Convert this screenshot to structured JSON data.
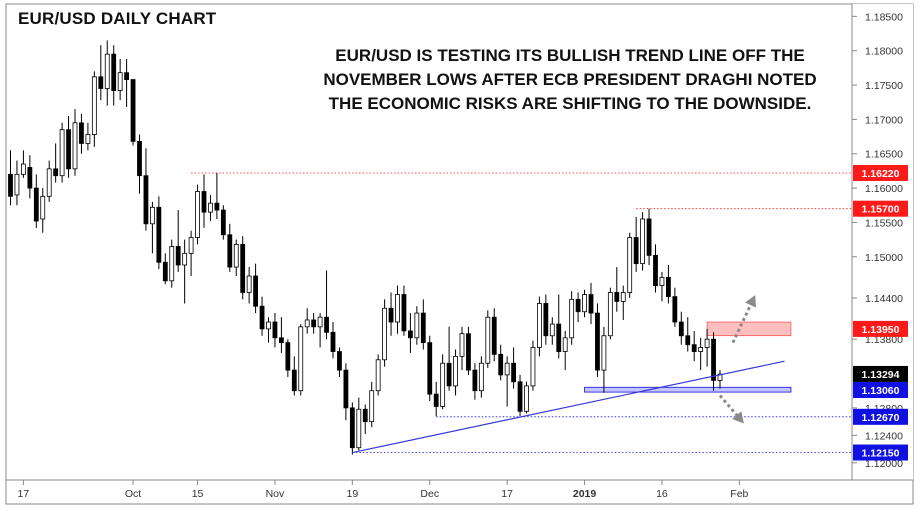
{
  "chart_data": {
    "type": "candlestick",
    "title": "EUR/USD DAILY CHART",
    "annotation": [
      "EUR/USD IS TESTING ITS BULLISH TREND LINE OFF THE",
      "NOVEMBER LOWS AFTER ECB PRESIDENT DRAGHI NOTED",
      "THE ECONOMIC RISKS ARE SHIFTING TO THE DOWNSIDE."
    ],
    "ylim": [
      1.1175,
      1.1868
    ],
    "y_ticks": [
      "1.18500",
      "1.18000",
      "1.17500",
      "1.17000",
      "1.16500",
      "1.16000",
      "1.15500",
      "1.15000",
      "1.14400",
      "1.13800",
      "1.12800",
      "1.12400",
      "1.12000"
    ],
    "x_ticks": [
      "17",
      "Oct",
      "15",
      "Nov",
      "19",
      "Dec",
      "17",
      "2019",
      "16",
      "Feb"
    ],
    "x_tick_bold": [
      false,
      false,
      false,
      false,
      false,
      false,
      false,
      true,
      false,
      false
    ],
    "x_tick_bar_index": [
      2,
      19,
      29,
      41,
      53,
      65,
      77,
      89,
      101,
      113
    ],
    "colors": {
      "up": "#ffffff",
      "down": "#000000",
      "wick": "#000000",
      "red": "#ff1a1a",
      "blue": "#1010e0",
      "trend": "#3838d8"
    },
    "price_labels": [
      {
        "value": 1.1622,
        "text": "1.16220",
        "color": "red"
      },
      {
        "value": 1.157,
        "text": "1.15700",
        "color": "red"
      },
      {
        "value": 1.1395,
        "text": "1.13950",
        "color": "red"
      },
      {
        "value": 1.13294,
        "text": "1.13294",
        "color": "black"
      },
      {
        "value": 1.1306,
        "text": "1.13060",
        "color": "blue"
      },
      {
        "value": 1.1267,
        "text": "1.12670",
        "color": "blue"
      },
      {
        "value": 1.1215,
        "text": "1.12150",
        "color": "blue"
      }
    ],
    "candles": [
      [
        1.162,
        1.1655,
        1.1575,
        1.1588
      ],
      [
        1.159,
        1.164,
        1.1575,
        1.162
      ],
      [
        1.162,
        1.1655,
        1.1615,
        1.1635
      ],
      [
        1.163,
        1.1648,
        1.1585,
        1.16
      ],
      [
        1.16,
        1.162,
        1.1542,
        1.1552
      ],
      [
        1.1555,
        1.16,
        1.1535,
        1.1588
      ],
      [
        1.1588,
        1.164,
        1.158,
        1.1628
      ],
      [
        1.1628,
        1.1665,
        1.1608,
        1.1618
      ],
      [
        1.1618,
        1.1695,
        1.1608,
        1.1685
      ],
      [
        1.1685,
        1.1705,
        1.1615,
        1.1628
      ],
      [
        1.1628,
        1.1715,
        1.1618,
        1.1695
      ],
      [
        1.1695,
        1.1708,
        1.165,
        1.1665
      ],
      [
        1.1665,
        1.1695,
        1.1655,
        1.1678
      ],
      [
        1.1678,
        1.177,
        1.166,
        1.1762
      ],
      [
        1.1762,
        1.1808,
        1.1728,
        1.1745
      ],
      [
        1.1745,
        1.1815,
        1.172,
        1.1795
      ],
      [
        1.1795,
        1.1808,
        1.172,
        1.1742
      ],
      [
        1.1742,
        1.1788,
        1.1728,
        1.1768
      ],
      [
        1.1768,
        1.1788,
        1.1718,
        1.1758
      ],
      [
        1.1758,
        1.1758,
        1.1662,
        1.1668
      ],
      [
        1.1668,
        1.1678,
        1.1592,
        1.1618
      ],
      [
        1.1618,
        1.1658,
        1.1538,
        1.1548
      ],
      [
        1.1548,
        1.158,
        1.1505,
        1.1572
      ],
      [
        1.1572,
        1.1588,
        1.1482,
        1.1492
      ],
      [
        1.1492,
        1.1505,
        1.146,
        1.1465
      ],
      [
        1.1465,
        1.1525,
        1.1455,
        1.1515
      ],
      [
        1.1515,
        1.1568,
        1.1478,
        1.1488
      ],
      [
        1.1488,
        1.1525,
        1.1432,
        1.1505
      ],
      [
        1.1505,
        1.1538,
        1.1472,
        1.1528
      ],
      [
        1.1528,
        1.1605,
        1.1518,
        1.1595
      ],
      [
        1.1595,
        1.162,
        1.1542,
        1.1565
      ],
      [
        1.1565,
        1.159,
        1.1552,
        1.1578
      ],
      [
        1.1578,
        1.1622,
        1.1555,
        1.1568
      ],
      [
        1.1568,
        1.1575,
        1.1525,
        1.1532
      ],
      [
        1.1532,
        1.1548,
        1.1478,
        1.1485
      ],
      [
        1.1485,
        1.1525,
        1.1472,
        1.1518
      ],
      [
        1.1518,
        1.153,
        1.1438,
        1.1448
      ],
      [
        1.1448,
        1.1485,
        1.1432,
        1.1472
      ],
      [
        1.1472,
        1.149,
        1.1418,
        1.1428
      ],
      [
        1.1428,
        1.1442,
        1.1385,
        1.1395
      ],
      [
        1.1395,
        1.1412,
        1.1375,
        1.1405
      ],
      [
        1.1405,
        1.1418,
        1.1368,
        1.1382
      ],
      [
        1.1382,
        1.1412,
        1.136,
        1.1375
      ],
      [
        1.1375,
        1.138,
        1.1325,
        1.1335
      ],
      [
        1.1335,
        1.1355,
        1.1298,
        1.1305
      ],
      [
        1.1305,
        1.1402,
        1.1298,
        1.1398
      ],
      [
        1.1398,
        1.1425,
        1.1388,
        1.1408
      ],
      [
        1.1408,
        1.1418,
        1.1388,
        1.1398
      ],
      [
        1.1398,
        1.1418,
        1.1368,
        1.1412
      ],
      [
        1.1412,
        1.148,
        1.138,
        1.139
      ],
      [
        1.139,
        1.1405,
        1.1352,
        1.1362
      ],
      [
        1.1362,
        1.1368,
        1.1325,
        1.1335
      ],
      [
        1.1335,
        1.1345,
        1.1262,
        1.128
      ],
      [
        1.128,
        1.1288,
        1.1212,
        1.1222
      ],
      [
        1.1222,
        1.1295,
        1.1218,
        1.1278
      ],
      [
        1.1278,
        1.1285,
        1.1242,
        1.126
      ],
      [
        1.126,
        1.1318,
        1.1252,
        1.1305
      ],
      [
        1.1305,
        1.1358,
        1.1298,
        1.135
      ],
      [
        1.135,
        1.1438,
        1.134,
        1.1425
      ],
      [
        1.1425,
        1.1448,
        1.1385,
        1.1405
      ],
      [
        1.1405,
        1.1458,
        1.1388,
        1.1445
      ],
      [
        1.1445,
        1.1458,
        1.1385,
        1.1392
      ],
      [
        1.1392,
        1.1418,
        1.136,
        1.1382
      ],
      [
        1.1382,
        1.1428,
        1.1372,
        1.1418
      ],
      [
        1.1418,
        1.1438,
        1.1365,
        1.1375
      ],
      [
        1.1375,
        1.1385,
        1.129,
        1.13
      ],
      [
        1.13,
        1.1318,
        1.1268,
        1.1282
      ],
      [
        1.1282,
        1.1358,
        1.1278,
        1.1345
      ],
      [
        1.1345,
        1.1398,
        1.1305,
        1.1312
      ],
      [
        1.1312,
        1.1365,
        1.1298,
        1.1355
      ],
      [
        1.1355,
        1.1398,
        1.1335,
        1.1388
      ],
      [
        1.1388,
        1.1398,
        1.1328,
        1.1335
      ],
      [
        1.1335,
        1.1345,
        1.1292,
        1.1305
      ],
      [
        1.1305,
        1.1355,
        1.1295,
        1.1345
      ],
      [
        1.1345,
        1.1422,
        1.1338,
        1.1412
      ],
      [
        1.1412,
        1.1425,
        1.1348,
        1.1358
      ],
      [
        1.1358,
        1.1372,
        1.132,
        1.1328
      ],
      [
        1.1328,
        1.1355,
        1.1282,
        1.1345
      ],
      [
        1.1345,
        1.1368,
        1.1308,
        1.1318
      ],
      [
        1.1318,
        1.1328,
        1.1268,
        1.1275
      ],
      [
        1.1275,
        1.1318,
        1.1272,
        1.1312
      ],
      [
        1.1312,
        1.1378,
        1.1305,
        1.1368
      ],
      [
        1.1368,
        1.1442,
        1.1355,
        1.1432
      ],
      [
        1.1432,
        1.1445,
        1.1372,
        1.1385
      ],
      [
        1.1385,
        1.1412,
        1.1372,
        1.1402
      ],
      [
        1.1402,
        1.1445,
        1.1352,
        1.1362
      ],
      [
        1.1362,
        1.1392,
        1.1335,
        1.1382
      ],
      [
        1.1382,
        1.145,
        1.1372,
        1.1438
      ],
      [
        1.1438,
        1.1448,
        1.1405,
        1.142
      ],
      [
        1.142,
        1.1452,
        1.1412,
        1.1445
      ],
      [
        1.1445,
        1.1462,
        1.1402,
        1.1418
      ],
      [
        1.1418,
        1.1432,
        1.1325,
        1.1335
      ],
      [
        1.1335,
        1.1398,
        1.1302,
        1.1385
      ],
      [
        1.1385,
        1.1455,
        1.138,
        1.1448
      ],
      [
        1.1448,
        1.1485,
        1.142,
        1.1435
      ],
      [
        1.1435,
        1.1458,
        1.1408,
        1.1448
      ],
      [
        1.1448,
        1.1535,
        1.144,
        1.1528
      ],
      [
        1.1528,
        1.1558,
        1.1478,
        1.149
      ],
      [
        1.149,
        1.1565,
        1.148,
        1.1555
      ],
      [
        1.1555,
        1.157,
        1.1488,
        1.1502
      ],
      [
        1.1502,
        1.1518,
        1.1448,
        1.1458
      ],
      [
        1.1458,
        1.1478,
        1.1435,
        1.147
      ],
      [
        1.147,
        1.1488,
        1.1432,
        1.1442
      ],
      [
        1.1442,
        1.1455,
        1.1398,
        1.1405
      ],
      [
        1.1405,
        1.142,
        1.1372,
        1.1385
      ],
      [
        1.1385,
        1.1412,
        1.1362,
        1.1372
      ],
      [
        1.1372,
        1.1392,
        1.1348,
        1.1362
      ],
      [
        1.1362,
        1.1382,
        1.1335,
        1.1368
      ],
      [
        1.1368,
        1.1395,
        1.134,
        1.138
      ],
      [
        1.138,
        1.139,
        1.1305,
        1.132
      ],
      [
        1.132,
        1.1335,
        1.1308,
        1.1329
      ]
    ],
    "trendline": {
      "from": [
        53,
        1.1215
      ],
      "to": [
        120,
        1.1348
      ]
    },
    "resistance_band": {
      "x_from": 108,
      "x_to": 121,
      "y_from": 1.1385,
      "y_to": 1.1405
    },
    "support_band": {
      "x_from": 89,
      "x_to": 121,
      "y_from": 1.1303,
      "y_to": 1.131
    },
    "dotted_lines": [
      {
        "value": 1.1622,
        "x_from": 28,
        "color": "red"
      },
      {
        "value": 1.157,
        "x_from": 97,
        "color": "red"
      },
      {
        "value": 1.1267,
        "x_from": 66,
        "color": "blue"
      },
      {
        "value": 1.1215,
        "x_from": 53,
        "color": "blue"
      }
    ],
    "arrows": [
      {
        "from": [
          112,
          1.1375
        ],
        "to": [
          115,
          1.1435
        ]
      },
      {
        "from": [
          110,
          1.1298
        ],
        "to": [
          113,
          1.1265
        ]
      }
    ]
  }
}
